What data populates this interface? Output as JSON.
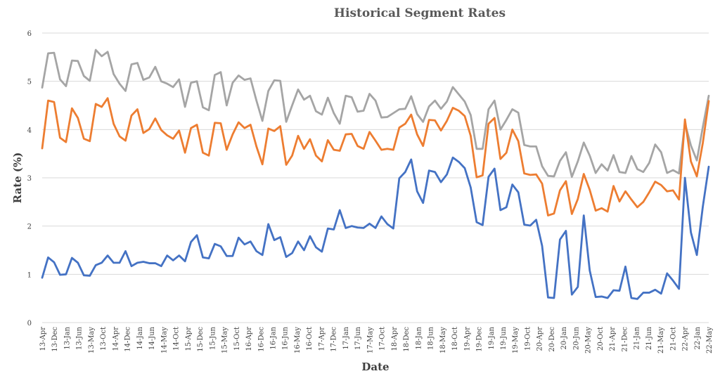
{
  "chart_data": {
    "type": "line",
    "title": "Historical Segment Rates",
    "xlabel": "Date",
    "ylabel": "Rate (%)",
    "ylim": [
      0,
      6
    ],
    "yticks": [
      "0",
      "1",
      "2",
      "3",
      "4",
      "5",
      "6"
    ],
    "grid": true,
    "legend": "none",
    "x_tick_labels": [
      "13-Apr",
      "13-Dec",
      "13-Jan",
      "13-Jun",
      "13-May",
      "13-Oct",
      "14-Apr",
      "14-Dec",
      "14-Jan",
      "14-Jun",
      "14-May",
      "14-Oct",
      "15-Apr",
      "15-Dec",
      "15-Jun",
      "15-May",
      "15-Oct",
      "16-Apr",
      "16-Dec",
      "16-Jan",
      "16-Jun",
      "16-May",
      "16-Oct",
      "17-Apr",
      "17-Dec",
      "17-Jan",
      "17-Jun",
      "17-May",
      "17-Oct",
      "18-Apr",
      "18-Dec",
      "18-Jan",
      "18-Jun",
      "18-May",
      "18-Oct",
      "19-Apr",
      "19-Dec",
      "19-Jan",
      "19-Jun",
      "19-May",
      "19-Oct",
      "20-Apr",
      "20-Dec",
      "20-Jan",
      "20-Jun",
      "20-May",
      "20-Oct",
      "21-Apr",
      "21-Dec",
      "21-Jan",
      "21-Jun",
      "21-May",
      "21-Oct",
      "22-Apr",
      "22-Jan",
      "22-May"
    ],
    "series": [
      {
        "color": "#a5a5a5",
        "values": [
          4.87,
          5.58,
          5.59,
          5.04,
          4.9,
          5.43,
          5.42,
          5.11,
          5.01,
          5.65,
          5.52,
          5.61,
          5.15,
          4.95,
          4.8,
          5.35,
          5.38,
          5.03,
          5.08,
          5.3,
          5.0,
          4.95,
          4.88,
          5.04,
          4.47,
          4.97,
          5.0,
          4.46,
          4.4,
          5.13,
          5.19,
          4.5,
          4.97,
          5.12,
          5.03,
          5.06,
          4.6,
          4.18,
          4.8,
          5.02,
          5.01,
          4.16,
          4.5,
          4.83,
          4.62,
          4.7,
          4.38,
          4.31,
          4.66,
          4.34,
          4.12,
          4.7,
          4.67,
          4.37,
          4.39,
          4.74,
          4.6,
          4.25,
          4.26,
          4.34,
          4.42,
          4.43,
          4.69,
          4.32,
          4.16,
          4.48,
          4.6,
          4.43,
          4.58,
          4.88,
          4.73,
          4.58,
          4.3,
          3.6,
          3.6,
          4.42,
          4.6,
          4.0,
          4.2,
          4.42,
          4.35,
          3.68,
          3.65,
          3.65,
          3.24,
          3.04,
          3.03,
          3.35,
          3.53,
          3.02,
          3.34,
          3.73,
          3.46,
          3.1,
          3.28,
          3.15,
          3.47,
          3.12,
          3.1,
          3.45,
          3.18,
          3.12,
          3.31,
          3.69,
          3.53,
          3.1,
          3.16,
          3.09,
          4.13,
          3.67,
          3.36,
          4.05,
          4.7
        ]
      },
      {
        "color": "#ed7d31",
        "values": [
          3.61,
          4.6,
          4.57,
          3.83,
          3.74,
          4.44,
          4.24,
          3.81,
          3.76,
          4.53,
          4.47,
          4.65,
          4.12,
          3.86,
          3.77,
          4.29,
          4.42,
          3.93,
          4.01,
          4.23,
          3.99,
          3.88,
          3.81,
          3.98,
          3.52,
          4.03,
          4.1,
          3.52,
          3.46,
          4.14,
          4.13,
          3.58,
          3.9,
          4.15,
          4.03,
          4.1,
          3.65,
          3.28,
          4.02,
          3.97,
          4.07,
          3.27,
          3.46,
          3.87,
          3.6,
          3.8,
          3.46,
          3.34,
          3.78,
          3.58,
          3.56,
          3.9,
          3.91,
          3.66,
          3.6,
          3.95,
          3.77,
          3.58,
          3.6,
          3.58,
          4.04,
          4.12,
          4.31,
          3.9,
          3.66,
          4.2,
          4.19,
          3.98,
          4.18,
          4.45,
          4.39,
          4.28,
          3.87,
          3.01,
          3.05,
          4.12,
          4.24,
          3.39,
          3.52,
          4.0,
          3.76,
          3.09,
          3.06,
          3.07,
          2.88,
          2.22,
          2.26,
          2.74,
          2.93,
          2.25,
          2.56,
          3.08,
          2.75,
          2.32,
          2.37,
          2.3,
          2.83,
          2.51,
          2.72,
          2.55,
          2.39,
          2.5,
          2.7,
          2.92,
          2.85,
          2.72,
          2.74,
          2.55,
          4.21,
          3.34,
          3.03,
          3.72,
          4.59
        ]
      },
      {
        "color": "#4472c4",
        "values": [
          0.93,
          1.35,
          1.25,
          0.99,
          1.0,
          1.34,
          1.24,
          0.98,
          0.97,
          1.19,
          1.24,
          1.39,
          1.24,
          1.24,
          1.48,
          1.17,
          1.24,
          1.26,
          1.23,
          1.23,
          1.17,
          1.39,
          1.29,
          1.39,
          1.27,
          1.67,
          1.81,
          1.35,
          1.33,
          1.63,
          1.58,
          1.38,
          1.38,
          1.76,
          1.62,
          1.68,
          1.48,
          1.4,
          2.04,
          1.71,
          1.77,
          1.36,
          1.44,
          1.68,
          1.5,
          1.79,
          1.56,
          1.47,
          1.95,
          1.93,
          2.33,
          1.96,
          2.0,
          1.97,
          1.96,
          2.05,
          1.96,
          2.2,
          2.04,
          1.95,
          2.99,
          3.12,
          3.38,
          2.72,
          2.48,
          3.15,
          3.12,
          2.91,
          3.07,
          3.42,
          3.33,
          3.2,
          2.8,
          2.08,
          2.02,
          3.02,
          3.19,
          2.33,
          2.39,
          2.86,
          2.7,
          2.03,
          2.01,
          2.13,
          1.59,
          0.52,
          0.51,
          1.72,
          1.9,
          0.58,
          0.74,
          2.22,
          1.08,
          0.53,
          0.54,
          0.51,
          0.67,
          0.66,
          1.16,
          0.51,
          0.49,
          0.62,
          0.62,
          0.68,
          0.6,
          1.02,
          0.87,
          0.7,
          3.0,
          1.87,
          1.4,
          2.4,
          3.23
        ]
      }
    ]
  }
}
